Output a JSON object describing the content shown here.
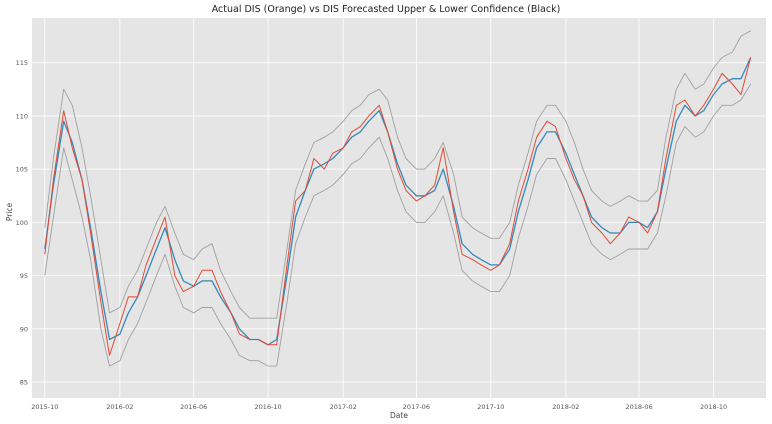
{
  "chart_data": {
    "type": "line",
    "title": "Actual DIS (Orange) vs DIS Forecasted Upper & Lower Confidence (Black)",
    "xlabel": "Date",
    "ylabel": "Price",
    "ylim": [
      83.5,
      119.2
    ],
    "xlim": [
      "2015-09-10",
      "2018-12-26"
    ],
    "grid": true,
    "legend": "none",
    "x_ticks": [
      "2015-10",
      "2016-02",
      "2016-06",
      "2016-10",
      "2017-02",
      "2017-06",
      "2017-10",
      "2018-02",
      "2018-06",
      "2018-10"
    ],
    "y_ticks": [
      85,
      90,
      95,
      100,
      105,
      110,
      115
    ],
    "colors": {
      "actual": "#e24a33",
      "forecast": "#348abd",
      "upper": "#a0a0a0",
      "lower": "#a0a0a0",
      "background": "#e5e5e5",
      "grid": "#ffffff"
    },
    "x": [
      "2015-10-01",
      "2015-10-15",
      "2015-11-01",
      "2015-11-15",
      "2015-12-01",
      "2015-12-15",
      "2016-01-01",
      "2016-01-15",
      "2016-02-01",
      "2016-02-15",
      "2016-03-01",
      "2016-03-15",
      "2016-04-01",
      "2016-04-15",
      "2016-05-01",
      "2016-05-15",
      "2016-06-01",
      "2016-06-15",
      "2016-07-01",
      "2016-07-15",
      "2016-08-01",
      "2016-08-15",
      "2016-09-01",
      "2016-09-15",
      "2016-10-01",
      "2016-10-15",
      "2016-11-01",
      "2016-11-15",
      "2016-12-01",
      "2016-12-15",
      "2017-01-01",
      "2017-01-15",
      "2017-02-01",
      "2017-02-15",
      "2017-03-01",
      "2017-03-15",
      "2017-04-01",
      "2017-04-15",
      "2017-05-01",
      "2017-05-15",
      "2017-06-01",
      "2017-06-15",
      "2017-07-01",
      "2017-07-15",
      "2017-08-01",
      "2017-08-15",
      "2017-09-01",
      "2017-09-15",
      "2017-10-01",
      "2017-10-15",
      "2017-11-01",
      "2017-11-15",
      "2017-12-01",
      "2017-12-15",
      "2018-01-01",
      "2018-01-15",
      "2018-02-01",
      "2018-02-15",
      "2018-03-01",
      "2018-03-15",
      "2018-04-01",
      "2018-04-15",
      "2018-05-01",
      "2018-05-15",
      "2018-06-01",
      "2018-06-15",
      "2018-07-01",
      "2018-07-15",
      "2018-08-01",
      "2018-08-15",
      "2018-09-01",
      "2018-09-15",
      "2018-10-01",
      "2018-10-15",
      "2018-11-01",
      "2018-11-15",
      "2018-12-01"
    ],
    "series": [
      {
        "key": "actual",
        "values": [
          97.0,
          104.0,
          110.5,
          107.0,
          104.0,
          99.0,
          92.5,
          87.5,
          90.5,
          93.0,
          93.0,
          96.0,
          98.5,
          100.5,
          95.0,
          93.5,
          94.0,
          95.5,
          95.5,
          93.5,
          91.5,
          89.5,
          89.0,
          89.0,
          88.5,
          88.5,
          96.0,
          102.0,
          103.0,
          106.0,
          105.0,
          106.5,
          107.0,
          108.5,
          109.0,
          110.0,
          111.0,
          108.5,
          105.0,
          103.0,
          102.0,
          102.5,
          103.5,
          107.0,
          101.0,
          97.0,
          96.5,
          96.0,
          95.5,
          96.0,
          98.0,
          102.0,
          105.0,
          108.0,
          109.5,
          109.0,
          106.0,
          104.0,
          102.5,
          100.0,
          99.0,
          98.0,
          99.0,
          100.5,
          100.0,
          99.0,
          101.0,
          106.0,
          111.0,
          111.5,
          110.0,
          111.0,
          112.5,
          114.0,
          113.0,
          112.0,
          115.5
        ]
      },
      {
        "key": "forecast",
        "values": [
          97.5,
          103.5,
          109.5,
          107.5,
          104.0,
          99.5,
          93.5,
          89.0,
          89.5,
          91.5,
          93.0,
          95.0,
          97.5,
          99.5,
          96.5,
          94.5,
          94.0,
          94.5,
          94.5,
          93.0,
          91.5,
          90.0,
          89.0,
          89.0,
          88.5,
          89.0,
          95.0,
          100.5,
          103.0,
          105.0,
          105.5,
          106.0,
          107.0,
          108.0,
          108.5,
          109.5,
          110.5,
          108.5,
          105.5,
          103.5,
          102.5,
          102.5,
          103.0,
          105.0,
          101.5,
          98.0,
          97.0,
          96.5,
          96.0,
          96.0,
          97.5,
          101.0,
          104.0,
          107.0,
          108.5,
          108.5,
          106.5,
          104.5,
          102.5,
          100.5,
          99.5,
          99.0,
          99.0,
          100.0,
          100.0,
          99.5,
          101.0,
          105.0,
          109.5,
          111.0,
          110.0,
          110.5,
          112.0,
          113.0,
          113.5,
          113.5,
          115.5
        ]
      },
      {
        "key": "upper",
        "values": [
          99.5,
          106.0,
          112.5,
          111.0,
          107.0,
          102.5,
          96.5,
          91.5,
          92.0,
          94.0,
          95.5,
          97.5,
          100.0,
          101.5,
          99.0,
          97.0,
          96.5,
          97.5,
          98.0,
          95.5,
          93.5,
          92.0,
          91.0,
          91.0,
          91.0,
          91.0,
          97.5,
          103.0,
          105.5,
          107.5,
          108.0,
          108.5,
          109.5,
          110.5,
          111.0,
          112.0,
          112.5,
          111.5,
          108.0,
          106.0,
          105.0,
          105.0,
          106.0,
          107.5,
          104.5,
          100.5,
          99.5,
          99.0,
          98.5,
          98.5,
          100.0,
          103.5,
          106.5,
          109.5,
          111.0,
          111.0,
          109.5,
          107.5,
          105.0,
          103.0,
          102.0,
          101.5,
          102.0,
          102.5,
          102.0,
          102.0,
          103.0,
          108.0,
          112.5,
          114.0,
          112.5,
          113.0,
          114.5,
          115.5,
          116.0,
          117.5,
          118.0
        ]
      },
      {
        "key": "lower",
        "values": [
          95.0,
          100.5,
          107.0,
          104.0,
          100.5,
          96.5,
          90.0,
          86.5,
          87.0,
          89.0,
          90.5,
          92.5,
          95.0,
          97.0,
          94.0,
          92.0,
          91.5,
          92.0,
          92.0,
          90.5,
          89.0,
          87.5,
          87.0,
          87.0,
          86.5,
          86.5,
          92.5,
          98.0,
          100.5,
          102.5,
          103.0,
          103.5,
          104.5,
          105.5,
          106.0,
          107.0,
          108.0,
          106.0,
          103.0,
          101.0,
          100.0,
          100.0,
          101.0,
          102.5,
          99.0,
          95.5,
          94.5,
          94.0,
          93.5,
          93.5,
          95.0,
          98.5,
          101.5,
          104.5,
          106.0,
          106.0,
          104.0,
          102.0,
          100.0,
          98.0,
          97.0,
          96.5,
          97.0,
          97.5,
          97.5,
          97.5,
          99.0,
          102.5,
          107.5,
          109.0,
          108.0,
          108.5,
          110.0,
          111.0,
          111.0,
          111.5,
          113.0
        ]
      }
    ]
  }
}
